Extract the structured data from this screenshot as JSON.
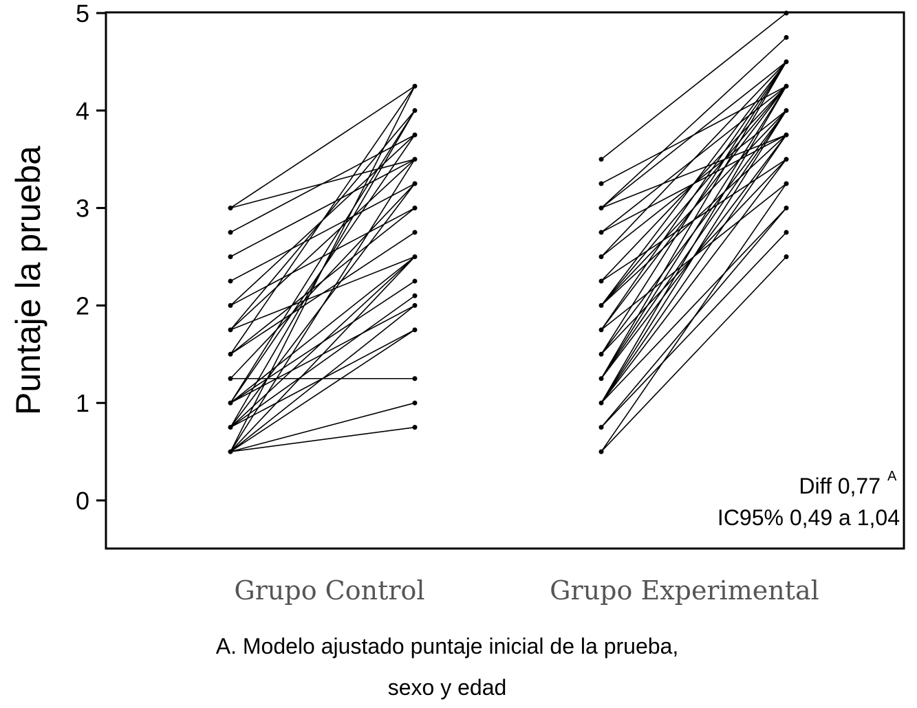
{
  "chart_data": {
    "type": "slope",
    "ylabel": "Puntaje la prueba",
    "ylim": [
      -0.5,
      5
    ],
    "yticks": [
      0,
      1,
      2,
      3,
      4,
      5
    ],
    "ytick_labels": [
      "0",
      "1",
      "2",
      "3",
      "4",
      "5"
    ],
    "categories": [
      "Grupo Control",
      "Grupo Experimental"
    ],
    "grid": false,
    "series": [
      {
        "pairs": [
          [
            3.0,
            4.25
          ],
          [
            3.0,
            3.5
          ],
          [
            2.75,
            3.75
          ],
          [
            2.5,
            3.5
          ],
          [
            2.25,
            3.25
          ],
          [
            2.0,
            3.75
          ],
          [
            2.0,
            3.0
          ],
          [
            1.75,
            4.0
          ],
          [
            1.75,
            2.5
          ],
          [
            1.75,
            3.5
          ],
          [
            1.5,
            4.25
          ],
          [
            1.5,
            2.75
          ],
          [
            1.5,
            3.0
          ],
          [
            1.25,
            1.25
          ],
          [
            1.25,
            3.25
          ],
          [
            1.0,
            3.75
          ],
          [
            1.0,
            2.5
          ],
          [
            1.0,
            2.25
          ],
          [
            1.0,
            4.0
          ],
          [
            1.0,
            2.0
          ],
          [
            0.75,
            3.25
          ],
          [
            0.75,
            2.1
          ],
          [
            0.75,
            1.75
          ],
          [
            0.75,
            4.0
          ],
          [
            0.75,
            2.5
          ],
          [
            0.5,
            4.25
          ],
          [
            0.5,
            2.0
          ],
          [
            0.5,
            1.75
          ],
          [
            0.5,
            1.0
          ],
          [
            0.5,
            0.75
          ],
          [
            0.5,
            3.5
          ],
          [
            0.5,
            2.5
          ]
        ]
      },
      {
        "pairs": [
          [
            3.5,
            5.0
          ],
          [
            3.25,
            4.25
          ],
          [
            3.0,
            4.75
          ],
          [
            3.0,
            3.75
          ],
          [
            3.0,
            4.5
          ],
          [
            2.75,
            4.25
          ],
          [
            2.75,
            3.75
          ],
          [
            2.5,
            4.5
          ],
          [
            2.5,
            4.0
          ],
          [
            2.25,
            4.25
          ],
          [
            2.25,
            3.5
          ],
          [
            2.0,
            4.5
          ],
          [
            2.0,
            4.0
          ],
          [
            2.0,
            3.75
          ],
          [
            1.75,
            4.25
          ],
          [
            1.75,
            3.25
          ],
          [
            1.75,
            4.5
          ],
          [
            1.5,
            4.0
          ],
          [
            1.5,
            3.5
          ],
          [
            1.25,
            4.25
          ],
          [
            1.25,
            3.75
          ],
          [
            1.25,
            4.5
          ],
          [
            1.0,
            3.5
          ],
          [
            1.0,
            4.25
          ],
          [
            1.0,
            3.0
          ],
          [
            1.0,
            4.0
          ],
          [
            0.75,
            3.0
          ],
          [
            0.75,
            2.75
          ],
          [
            0.5,
            2.5
          ],
          [
            0.5,
            3.25
          ],
          [
            2.0,
            4.25
          ],
          [
            1.5,
            4.5
          ],
          [
            1.25,
            4.0
          ],
          [
            1.0,
            3.75
          ]
        ]
      }
    ],
    "annotation": {
      "line1": "Diff 0,77",
      "superscript": "A",
      "line2": "IC95% 0,49 a 1,04"
    }
  },
  "caption": {
    "line1": "A. Modelo ajustado puntaje inicial de la prueba,",
    "line2": "sexo  y edad"
  }
}
